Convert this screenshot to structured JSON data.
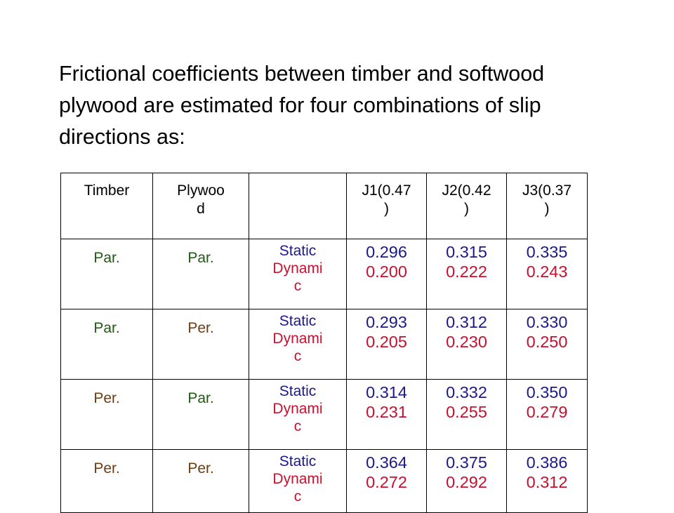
{
  "intro": "Frictional coefficients between timber and softwood plywood are estimated for four combinations of slip directions as:",
  "table": {
    "headers": {
      "timber": "Timber",
      "plywood_a": "Plywoo",
      "plywood_b": "d",
      "blank": "",
      "j1_a": "J1(0.47",
      "j1_b": ")",
      "j2_a": "J2(0.42",
      "j2_b": ")",
      "j3_a": "J3(0.37",
      "j3_b": ")"
    },
    "mode_labels": {
      "static": "Static",
      "dynamic_a": "Dynami",
      "dynamic_b": "c"
    },
    "orientation_colors": {
      "Par.": "#1f5a12",
      "Per.": "#6e3b0f"
    },
    "rows": [
      {
        "timber": "Par.",
        "plywood": "Par.",
        "j1": {
          "static": "0.296",
          "dynamic": "0.200"
        },
        "j2": {
          "static": "0.315",
          "dynamic": "0.222"
        },
        "j3": {
          "static": "0.335",
          "dynamic": "0.243"
        }
      },
      {
        "timber": "Par.",
        "plywood": "Per.",
        "j1": {
          "static": "0.293",
          "dynamic": "0.205"
        },
        "j2": {
          "static": "0.312",
          "dynamic": "0.230"
        },
        "j3": {
          "static": "0.330",
          "dynamic": "0.250"
        }
      },
      {
        "timber": "Per.",
        "plywood": "Par.",
        "j1": {
          "static": "0.314",
          "dynamic": "0.231"
        },
        "j2": {
          "static": "0.332",
          "dynamic": "0.255"
        },
        "j3": {
          "static": "0.350",
          "dynamic": "0.279"
        }
      },
      {
        "timber": "Per.",
        "plywood": "Per.",
        "j1": {
          "static": "0.364",
          "dynamic": "0.272"
        },
        "j2": {
          "static": "0.375",
          "dynamic": "0.292"
        },
        "j3": {
          "static": "0.386",
          "dynamic": "0.312"
        }
      }
    ]
  }
}
